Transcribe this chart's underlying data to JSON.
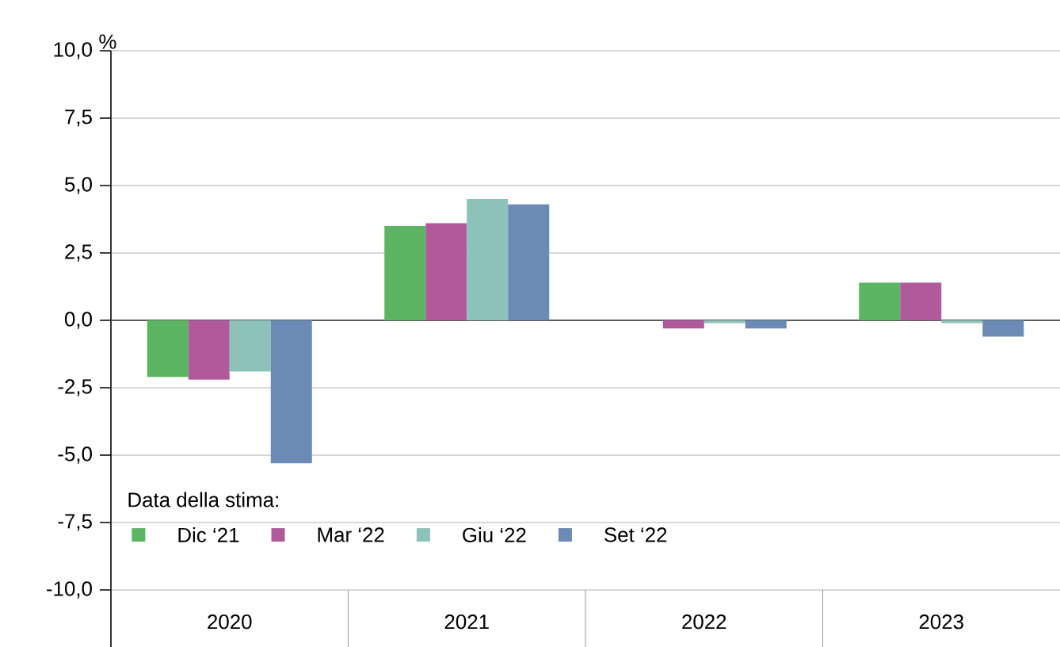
{
  "chart_data": {
    "type": "bar",
    "ylabel": "%",
    "legend_title": "Data della stima:",
    "categories": [
      "2020",
      "2021",
      "2022",
      "2023"
    ],
    "series": [
      {
        "name": "Dic ‘21",
        "color": "#5cb562",
        "values": [
          -2.1,
          3.5,
          0.0,
          1.4
        ]
      },
      {
        "name": "Mar ‘22",
        "color": "#b05a9c",
        "values": [
          -2.2,
          3.6,
          -0.3,
          1.4
        ]
      },
      {
        "name": "Giu ‘22",
        "color": "#8cc2b9",
        "values": [
          -1.9,
          4.5,
          -0.1,
          -0.1
        ]
      },
      {
        "name": "Set ‘22",
        "color": "#6b8ab5",
        "values": [
          -5.3,
          4.3,
          -0.3,
          -0.6
        ]
      }
    ],
    "ylim": [
      -10,
      10
    ],
    "yticks": [
      {
        "value": -10,
        "label": "-10,0"
      },
      {
        "value": -7.5,
        "label": "-7,5"
      },
      {
        "value": -5,
        "label": "-5,0"
      },
      {
        "value": -2.5,
        "label": "-2,5"
      },
      {
        "value": 0,
        "label": "0,0"
      },
      {
        "value": 2.5,
        "label": "2,5"
      },
      {
        "value": 5,
        "label": "5,0"
      },
      {
        "value": 7.5,
        "label": "7,5"
      },
      {
        "value": 10,
        "label": "10,0"
      }
    ],
    "grid": "y",
    "legend": "bottom left"
  }
}
